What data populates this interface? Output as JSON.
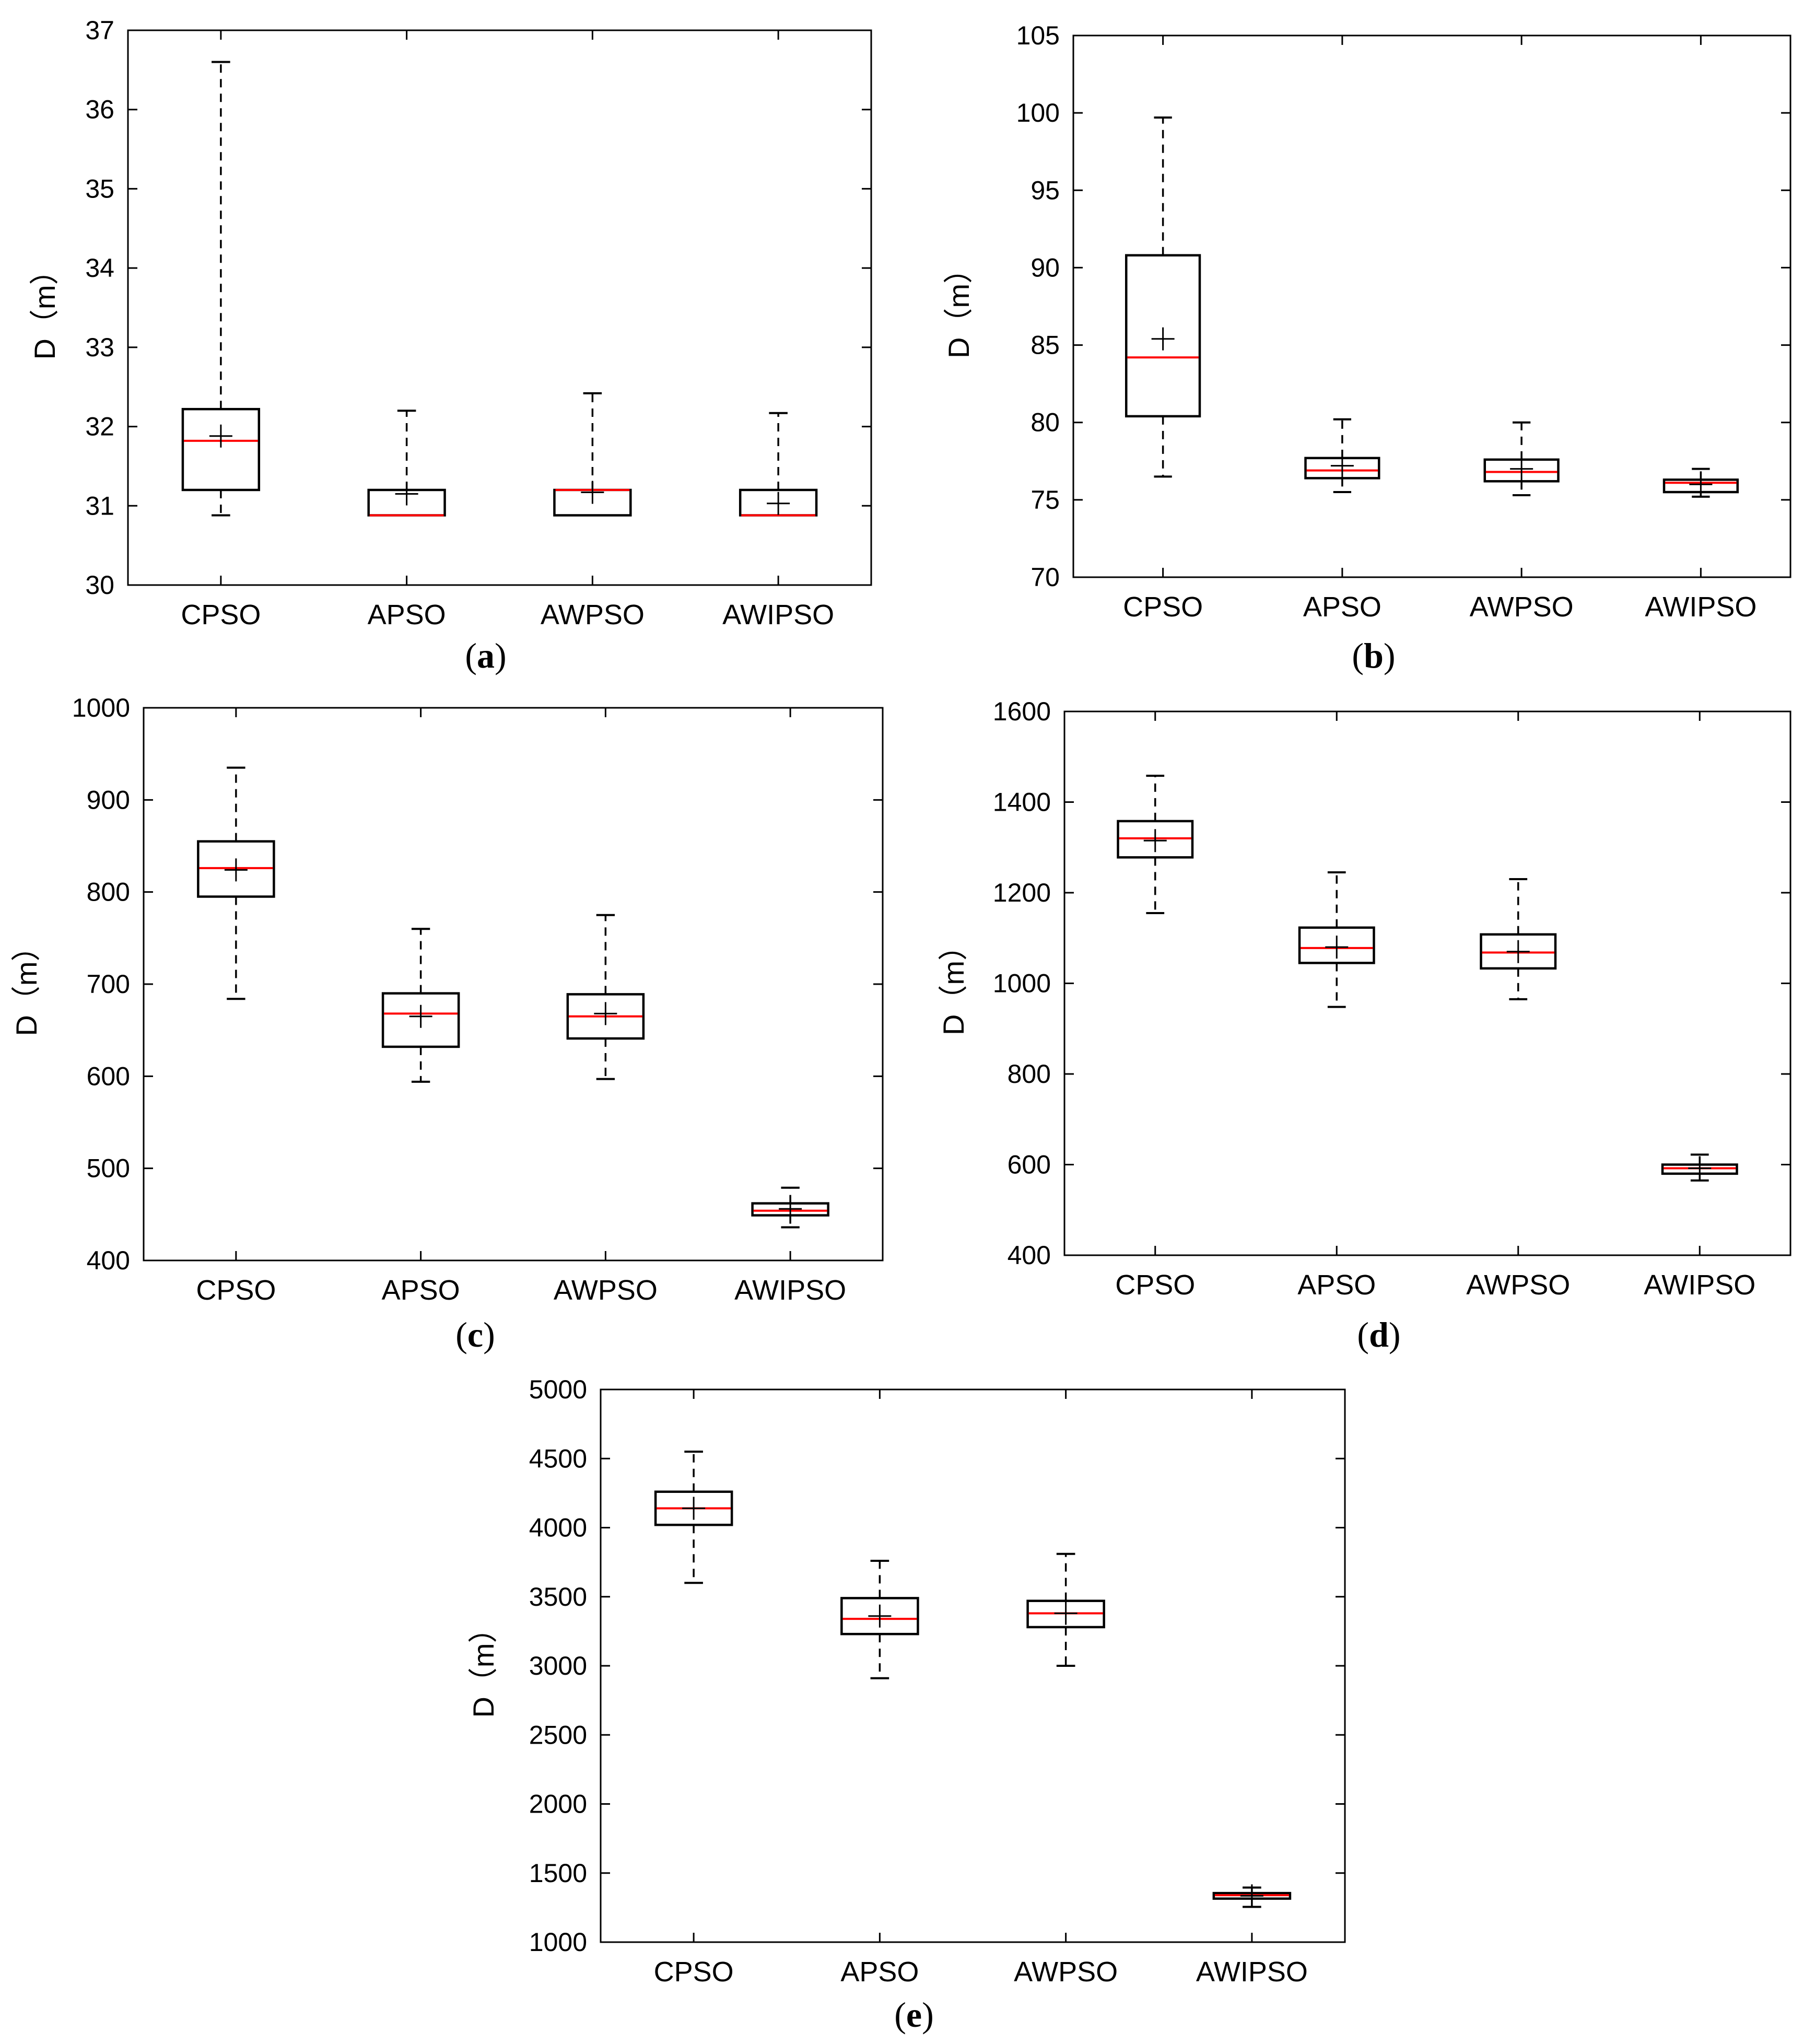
{
  "chart_data": [
    {
      "type": "box",
      "panel_label": "a",
      "ylabel": "D（m）",
      "categories": [
        "CPSO",
        "APSO",
        "AWPSO",
        "AWIPSO"
      ],
      "ylim": [
        30,
        37
      ],
      "yticks": [
        30,
        31,
        32,
        33,
        34,
        35,
        36,
        37
      ],
      "boxes": [
        {
          "name": "CPSO",
          "min": 30.88,
          "q1": 31.2,
          "median": 31.82,
          "q3": 32.22,
          "max": 36.6,
          "mean": 31.88
        },
        {
          "name": "APSO",
          "min": 30.88,
          "q1": 30.88,
          "median": 30.88,
          "q3": 31.2,
          "max": 32.2,
          "mean": 31.15
        },
        {
          "name": "AWPSO",
          "min": 30.88,
          "q1": 30.88,
          "median": 31.2,
          "q3": 31.2,
          "max": 32.42,
          "mean": 31.17
        },
        {
          "name": "AWIPSO",
          "min": 30.88,
          "q1": 30.88,
          "median": 30.88,
          "q3": 31.2,
          "max": 32.17,
          "mean": 31.03
        }
      ]
    },
    {
      "type": "box",
      "panel_label": "b",
      "ylabel": "D（m）",
      "categories": [
        "CPSO",
        "APSO",
        "AWPSO",
        "AWIPSO"
      ],
      "ylim": [
        70,
        105
      ],
      "yticks": [
        70,
        75,
        80,
        85,
        90,
        95,
        100,
        105
      ],
      "boxes": [
        {
          "name": "CPSO",
          "min": 76.5,
          "q1": 80.4,
          "median": 84.2,
          "q3": 90.8,
          "max": 99.7,
          "mean": 85.4
        },
        {
          "name": "APSO",
          "min": 75.5,
          "q1": 76.4,
          "median": 76.9,
          "q3": 77.7,
          "max": 80.2,
          "mean": 77.2
        },
        {
          "name": "AWPSO",
          "min": 75.3,
          "q1": 76.2,
          "median": 76.8,
          "q3": 77.6,
          "max": 80.0,
          "mean": 77.0
        },
        {
          "name": "AWIPSO",
          "min": 75.2,
          "q1": 75.5,
          "median": 76.1,
          "q3": 76.3,
          "max": 77.0,
          "mean": 76.0
        }
      ]
    },
    {
      "type": "box",
      "panel_label": "c",
      "ylabel": "D（m）",
      "categories": [
        "CPSO",
        "APSO",
        "AWPSO",
        "AWIPSO"
      ],
      "ylim": [
        400,
        1000
      ],
      "yticks": [
        400,
        500,
        600,
        700,
        800,
        900,
        1000
      ],
      "boxes": [
        {
          "name": "CPSO",
          "min": 684,
          "q1": 795,
          "median": 826,
          "q3": 855,
          "max": 935,
          "mean": 824
        },
        {
          "name": "APSO",
          "min": 594,
          "q1": 632,
          "median": 668,
          "q3": 690,
          "max": 760,
          "mean": 665
        },
        {
          "name": "AWPSO",
          "min": 597,
          "q1": 641,
          "median": 665,
          "q3": 689,
          "max": 775,
          "mean": 668
        },
        {
          "name": "AWIPSO",
          "min": 436,
          "q1": 449,
          "median": 454,
          "q3": 462,
          "max": 479,
          "mean": 456
        }
      ]
    },
    {
      "type": "box",
      "panel_label": "d",
      "ylabel": "D（m）",
      "categories": [
        "CPSO",
        "APSO",
        "AWPSO",
        "AWIPSO"
      ],
      "ylim": [
        400,
        1600
      ],
      "yticks": [
        400,
        600,
        800,
        1000,
        1200,
        1400,
        1600
      ],
      "boxes": [
        {
          "name": "CPSO",
          "min": 1155,
          "q1": 1278,
          "median": 1320,
          "q3": 1358,
          "max": 1458,
          "mean": 1315
        },
        {
          "name": "APSO",
          "min": 948,
          "q1": 1045,
          "median": 1078,
          "q3": 1123,
          "max": 1245,
          "mean": 1080
        },
        {
          "name": "AWPSO",
          "min": 965,
          "q1": 1033,
          "median": 1068,
          "q3": 1108,
          "max": 1230,
          "mean": 1070
        },
        {
          "name": "AWIPSO",
          "min": 565,
          "q1": 580,
          "median": 592,
          "q3": 600,
          "max": 622,
          "mean": 592
        }
      ]
    },
    {
      "type": "box",
      "panel_label": "e",
      "ylabel": "D（m）",
      "categories": [
        "CPSO",
        "APSO",
        "AWPSO",
        "AWIPSO"
      ],
      "ylim": [
        1000,
        5000
      ],
      "yticks": [
        1000,
        1500,
        2000,
        2500,
        3000,
        3500,
        4000,
        4500,
        5000
      ],
      "boxes": [
        {
          "name": "CPSO",
          "min": 3600,
          "q1": 4020,
          "median": 4140,
          "q3": 4260,
          "max": 4550,
          "mean": 4140
        },
        {
          "name": "APSO",
          "min": 2910,
          "q1": 3230,
          "median": 3340,
          "q3": 3490,
          "max": 3760,
          "mean": 3360
        },
        {
          "name": "AWPSO",
          "min": 3000,
          "q1": 3280,
          "median": 3380,
          "q3": 3470,
          "max": 3810,
          "mean": 3380
        },
        {
          "name": "AWIPSO",
          "min": 1255,
          "q1": 1315,
          "median": 1340,
          "q3": 1355,
          "max": 1395,
          "mean": 1335
        }
      ]
    }
  ],
  "colors": {
    "frame": "#000000",
    "median": "#ff0000",
    "background": "#ffffff"
  }
}
